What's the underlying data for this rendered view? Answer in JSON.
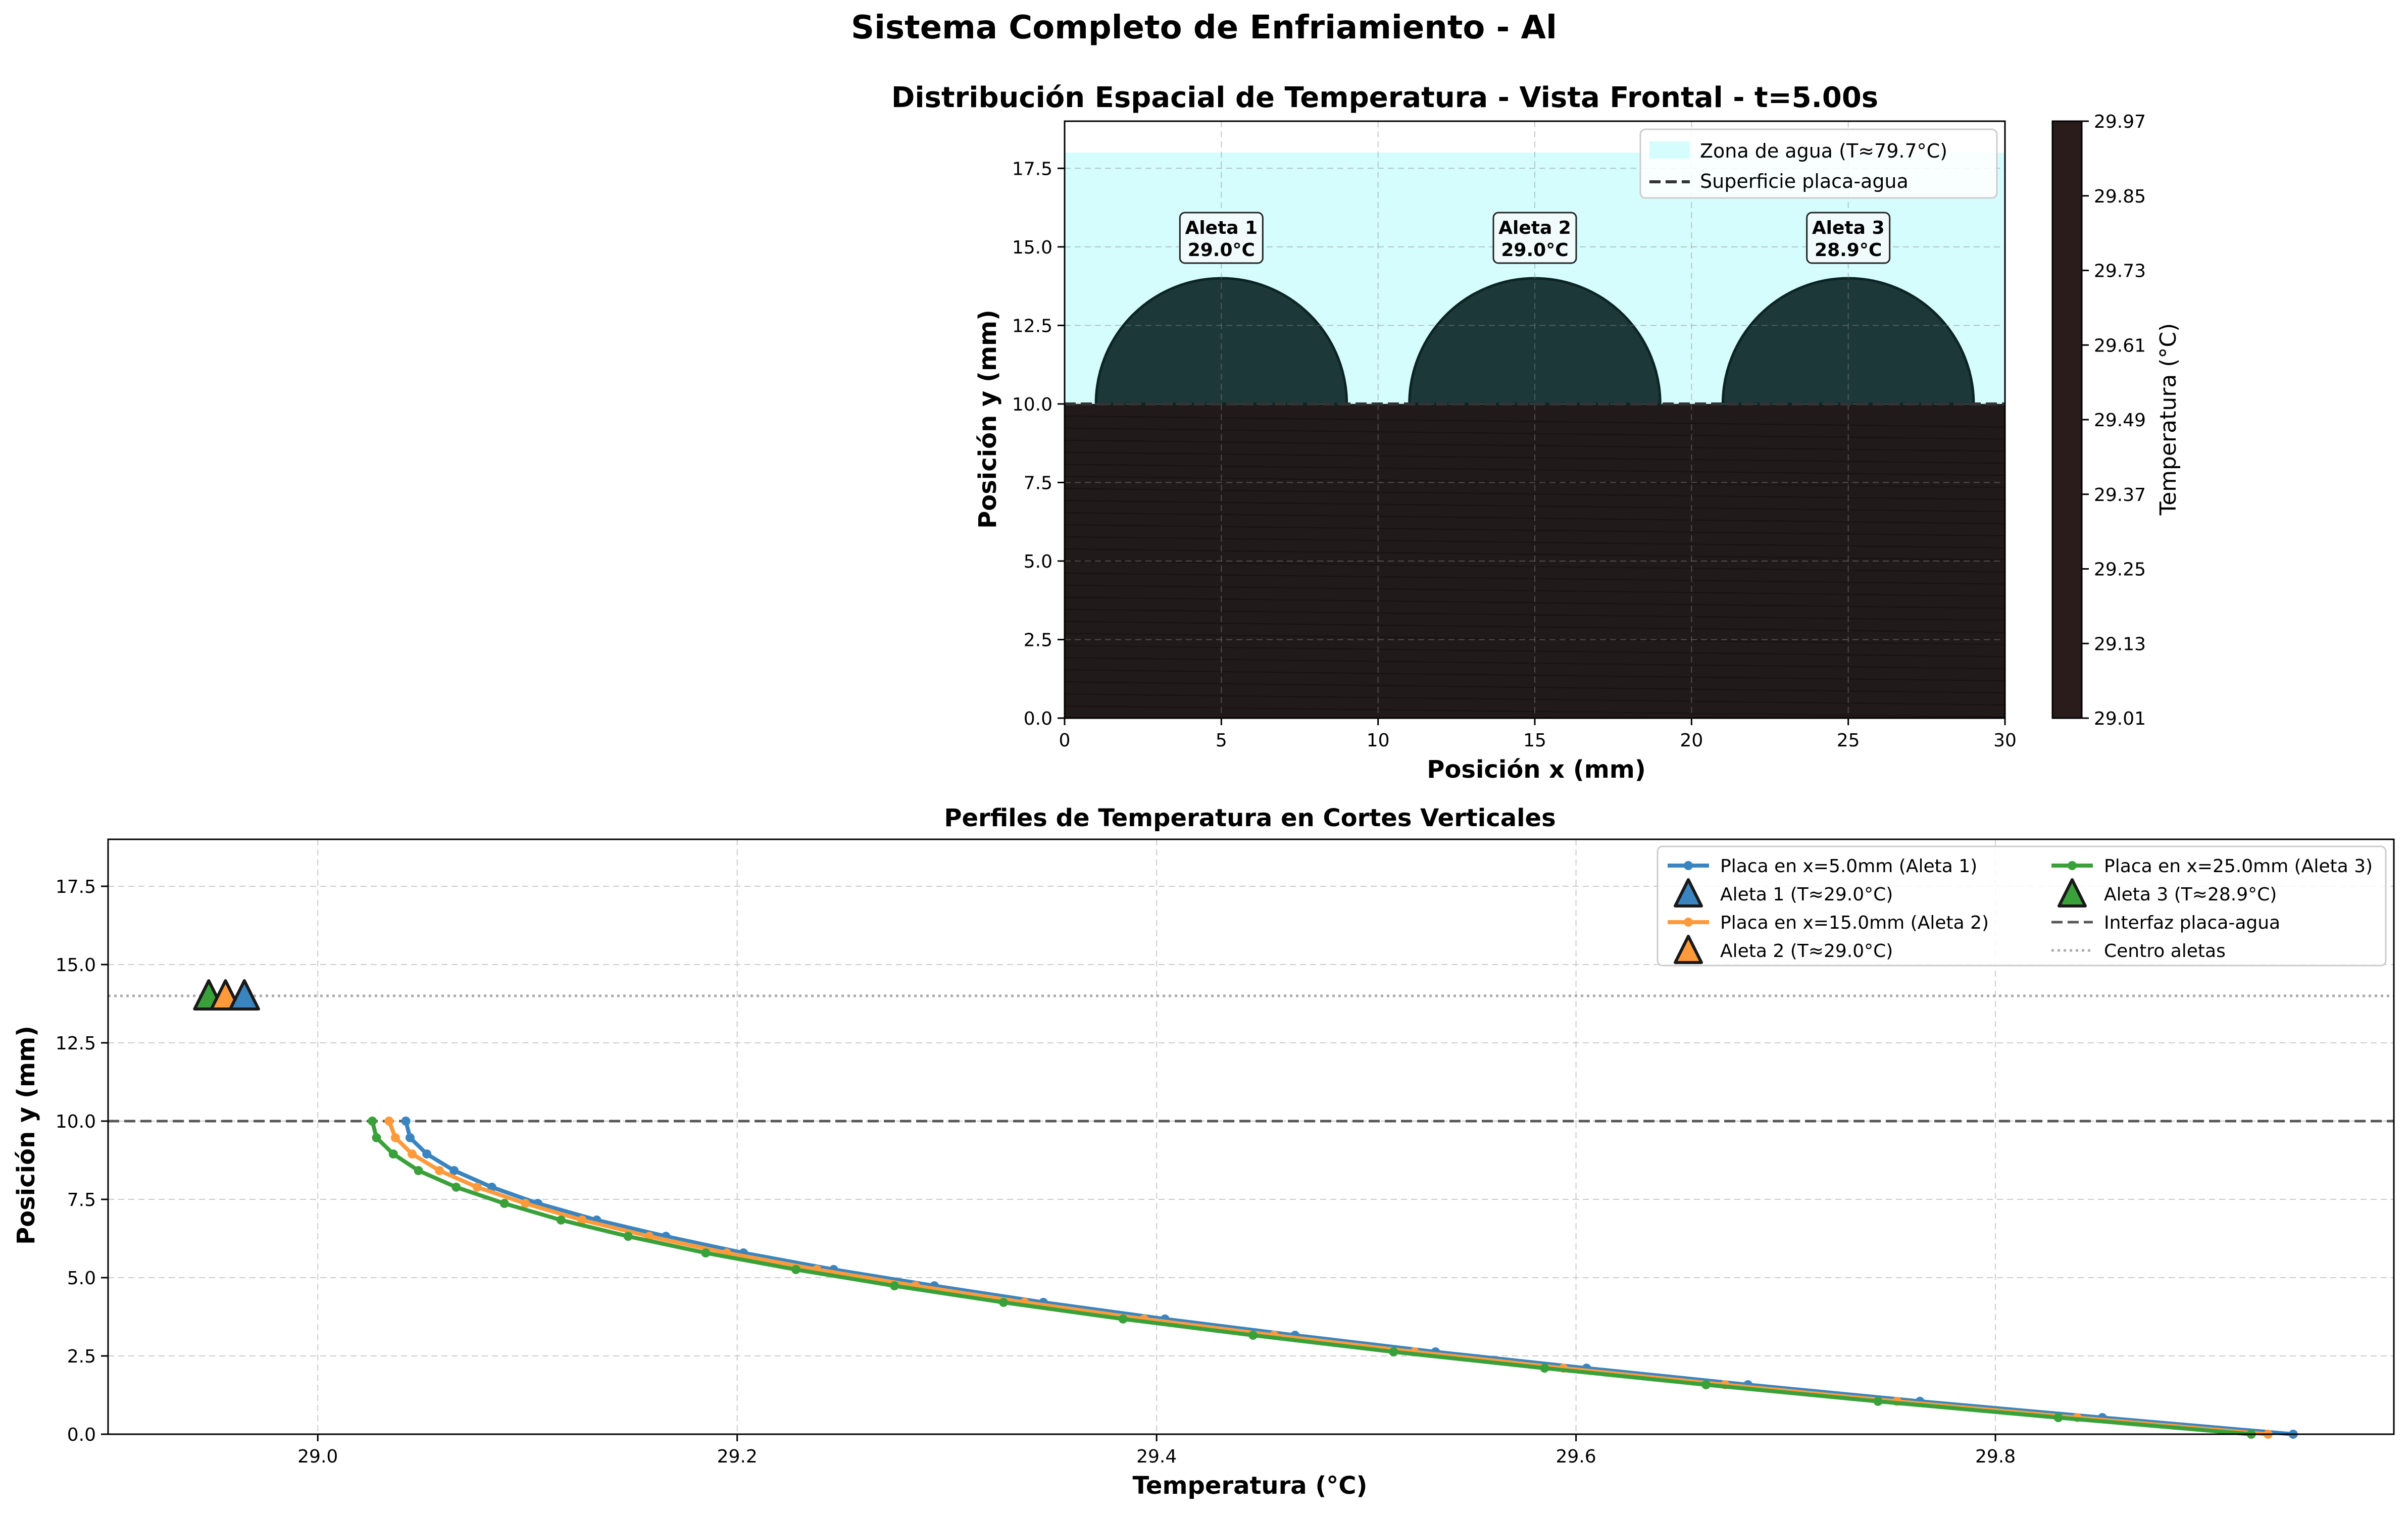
{
  "figure": {
    "suptitle": "Sistema Completo de Enfriamiento - Al"
  },
  "colors": {
    "water": "#d5fdfd",
    "plate": "#211a1a",
    "fin": "#1c3838",
    "fin_edge": "#0d2424",
    "series_blue": "#3a85c0",
    "series_orange": "#ff9a3c",
    "series_green": "#3aa13a",
    "grid": "#cccccc",
    "colorbar": "#2b1c1c"
  },
  "chart_data": [
    {
      "type": "heatmap",
      "title": "Distribución Espacial de Temperatura - Vista Frontal - t=5.00s",
      "xlabel": "Posición x (mm)",
      "ylabel": "Posición y (mm)",
      "xlim": [
        0,
        30
      ],
      "ylim": [
        0,
        19
      ],
      "xticks": [
        0,
        5,
        10,
        15,
        20,
        25,
        30
      ],
      "yticks": [
        0.0,
        2.5,
        5.0,
        7.5,
        10.0,
        12.5,
        15.0,
        17.5
      ],
      "grid": true,
      "legend_position": "top-right",
      "legend": [
        "Zona de agua (T≈79.7°C)",
        "Superficie placa-agua"
      ],
      "water_zone": {
        "y_from": 10,
        "y_to": 18
      },
      "plate_surface_y": 10,
      "fins": [
        {
          "label": "Aleta 1",
          "temp_label": "29.0°C",
          "center_x": 5,
          "center_y": 10,
          "radius": 4
        },
        {
          "label": "Aleta 2",
          "temp_label": "29.0°C",
          "center_x": 15,
          "center_y": 10,
          "radius": 4
        },
        {
          "label": "Aleta 3",
          "temp_label": "28.9°C",
          "center_x": 25,
          "center_y": 10,
          "radius": 4
        }
      ],
      "colorbar": {
        "label": "Temperatura (°C)",
        "ticks": [
          29.01,
          29.13,
          29.25,
          29.37,
          29.49,
          29.61,
          29.73,
          29.85,
          29.97
        ],
        "range": [
          29.01,
          29.97
        ]
      }
    },
    {
      "type": "line",
      "title": "Perfiles de Temperatura en Cortes Verticales",
      "xlabel": "Temperatura (°C)",
      "ylabel": "Posición y (mm)",
      "xlim": [
        28.9,
        29.99
      ],
      "ylim": [
        0,
        19
      ],
      "xticks": [
        29.0,
        29.2,
        29.4,
        29.6,
        29.8
      ],
      "yticks": [
        0.0,
        2.5,
        5.0,
        7.5,
        10.0,
        12.5,
        15.0,
        17.5
      ],
      "grid": true,
      "legend_position": "top-right",
      "reference_lines": [
        {
          "name": "Interfaz placa-agua",
          "y": 10,
          "style": "dashed"
        },
        {
          "name": "Centro aletas",
          "y": 14,
          "style": "dotted"
        }
      ],
      "series": [
        {
          "name": "Placa en x=5.0mm (Aleta 1)",
          "color": "#3a85c0",
          "y": [
            10.0,
            9.47,
            8.95,
            8.42,
            7.89,
            7.37,
            6.84,
            6.32,
            5.79,
            5.26,
            4.74,
            4.21,
            3.68,
            3.16,
            2.63,
            2.11,
            1.58,
            1.05,
            0.53,
            0.0
          ],
          "x": [
            29.042,
            29.044,
            29.052,
            29.065,
            29.083,
            29.105,
            29.133,
            29.166,
            29.203,
            29.246,
            29.294,
            29.346,
            29.404,
            29.466,
            29.533,
            29.605,
            29.682,
            29.764,
            29.851,
            29.942
          ]
        },
        {
          "name": "Placa en x=15.0mm (Aleta 2)",
          "color": "#ff9a3c",
          "y": [
            10.0,
            9.47,
            8.95,
            8.42,
            7.89,
            7.37,
            6.84,
            6.32,
            5.79,
            5.26,
            4.74,
            4.21,
            3.68,
            3.16,
            2.63,
            2.11,
            1.58,
            1.05,
            0.53,
            0.0
          ],
          "x": [
            29.034,
            29.037,
            29.045,
            29.058,
            29.076,
            29.099,
            29.126,
            29.158,
            29.195,
            29.238,
            29.285,
            29.337,
            29.394,
            29.456,
            29.523,
            29.594,
            29.671,
            29.753,
            29.839,
            29.93
          ]
        },
        {
          "name": "Placa en x=25.0mm (Aleta 3)",
          "color": "#3aa13a",
          "y": [
            10.0,
            9.47,
            8.95,
            8.42,
            7.89,
            7.37,
            6.84,
            6.32,
            5.79,
            5.26,
            4.74,
            4.21,
            3.68,
            3.16,
            2.63,
            2.11,
            1.58,
            1.05,
            0.53,
            0.0
          ],
          "x": [
            29.026,
            29.028,
            29.036,
            29.048,
            29.066,
            29.089,
            29.116,
            29.148,
            29.185,
            29.228,
            29.275,
            29.327,
            29.384,
            29.446,
            29.513,
            29.585,
            29.662,
            29.744,
            29.83,
            29.922
          ]
        }
      ],
      "markers": [
        {
          "name": "Aleta 1 (T≈29.0°C)",
          "color": "#3a85c0",
          "x": 28.965,
          "y": 14
        },
        {
          "name": "Aleta 2 (T≈29.0°C)",
          "color": "#ff9a3c",
          "x": 28.956,
          "y": 14
        },
        {
          "name": "Aleta 3 (T≈28.9°C)",
          "color": "#3aa13a",
          "x": 28.948,
          "y": 14
        }
      ]
    }
  ]
}
